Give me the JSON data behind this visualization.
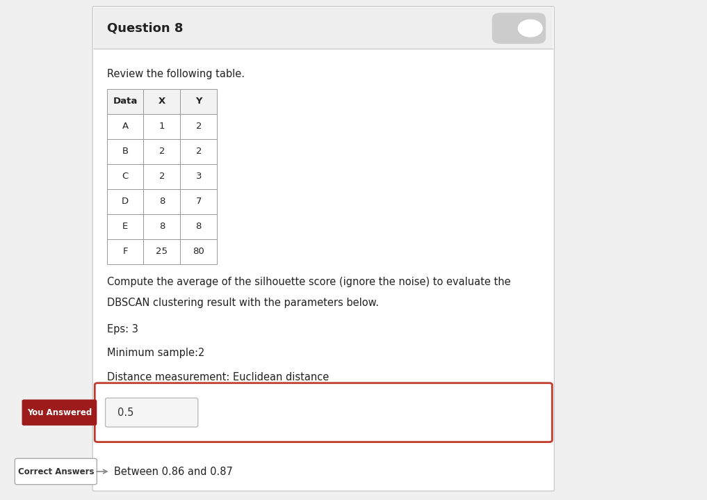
{
  "title": "Question 8",
  "review_text": "Review the following table.",
  "table_headers": [
    "Data",
    "X",
    "Y"
  ],
  "table_rows": [
    [
      "A",
      "1",
      "2"
    ],
    [
      "B",
      "2",
      "2"
    ],
    [
      "C",
      "2",
      "3"
    ],
    [
      "D",
      "8",
      "7"
    ],
    [
      "E",
      "8",
      "8"
    ],
    [
      "F",
      "25",
      "80"
    ]
  ],
  "question_text_line1": "Compute the average of the silhouette score (ignore the noise) to evaluate the",
  "question_text_line2": "DBSCAN clustering result with the parameters below.",
  "param1": "Eps: 3",
  "param2": "Minimum sample:2",
  "param3": "Distance measurement: Euclidean distance",
  "you_answered_label": "You Answered",
  "you_answered_value": "0.5",
  "correct_answers_label": "Correct Answers",
  "correct_answers_value": "Between 0.86 and 0.87",
  "bg_color": "#f0f0f0",
  "white": "#ffffff",
  "header_bg": "#eeeeee",
  "you_answered_bg": "#9e1b1b",
  "answer_border_color": "#c0392b",
  "title_font_size": 13,
  "body_font_size": 10.5,
  "small_font_size": 9.5
}
